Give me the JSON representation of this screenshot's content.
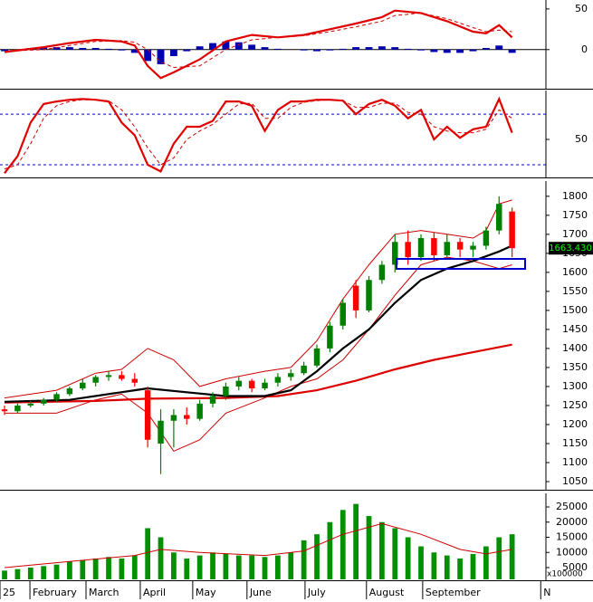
{
  "chart_data": [
    {
      "type": "macd",
      "xlim": [
        -0.35,
        41.6
      ],
      "ylim": [
        -47,
        61
      ],
      "yticks": [
        0,
        50
      ],
      "zero_line": true,
      "series": [
        {
          "style": "bar",
          "color": "#0000b0",
          "x": [
            0,
            1,
            2,
            3,
            4,
            5,
            6,
            7,
            8,
            9,
            10,
            11,
            12,
            13,
            14,
            15,
            16,
            17,
            18,
            19,
            20,
            21,
            22,
            23,
            24,
            25,
            26,
            27,
            28,
            29,
            30,
            31,
            32,
            33,
            34,
            35,
            36,
            37,
            38,
            39
          ],
          "values": [
            -2,
            0,
            2,
            3,
            3,
            3,
            2,
            2,
            1,
            -1,
            -4,
            -14,
            -18,
            -8,
            -2,
            4,
            8,
            10,
            9,
            6,
            3,
            1,
            0,
            -1,
            -2,
            -1,
            1,
            3,
            3,
            4,
            3,
            1,
            -1,
            -3,
            -4,
            -4,
            -2,
            2,
            5,
            -4
          ]
        },
        {
          "style": "dashed",
          "color": "#cc0000",
          "x": [
            0,
            3,
            5,
            7,
            9,
            10,
            11,
            12,
            13,
            15,
            17,
            19,
            21,
            23,
            25,
            27,
            29,
            30,
            32,
            34,
            36,
            37,
            38,
            39
          ],
          "values": [
            -2,
            0,
            5,
            10,
            11,
            9,
            0,
            -15,
            -22,
            -20,
            0,
            12,
            15,
            17,
            22,
            28,
            35,
            42,
            45,
            38,
            27,
            22,
            24,
            22
          ]
        },
        {
          "style": "thick",
          "color": "#e00000",
          "x": [
            0,
            3,
            5,
            7,
            9,
            10,
            11,
            12,
            13,
            15,
            17,
            19,
            21,
            23,
            25,
            27,
            29,
            30,
            32,
            34,
            36,
            37,
            38,
            39
          ],
          "values": [
            -3,
            3,
            8,
            12,
            10,
            5,
            -20,
            -35,
            -28,
            -12,
            10,
            18,
            15,
            18,
            25,
            32,
            40,
            48,
            45,
            35,
            22,
            20,
            30,
            15
          ]
        }
      ]
    },
    {
      "type": "stochastic",
      "xlim": [
        -0.35,
        41.6
      ],
      "ylim": [
        6,
        108
      ],
      "yticks": [
        50
      ],
      "levels": [
        80,
        20
      ],
      "level_color": "#0000cc",
      "series": [
        {
          "style": "dashed",
          "color": "#cc0000",
          "x": [
            0,
            1,
            2,
            3,
            4,
            5,
            6,
            7,
            8,
            9,
            10,
            11,
            12,
            13,
            14,
            15,
            16,
            17,
            18,
            19,
            20,
            21,
            22,
            23,
            24,
            25,
            26,
            27,
            28,
            29,
            30,
            31,
            32,
            33,
            34,
            35,
            36,
            37,
            38,
            39
          ],
          "values": [
            15,
            20,
            45,
            75,
            90,
            95,
            97,
            97,
            96,
            85,
            65,
            40,
            20,
            28,
            50,
            60,
            68,
            80,
            92,
            93,
            75,
            75,
            88,
            94,
            96,
            97,
            96,
            88,
            88,
            93,
            93,
            82,
            80,
            65,
            60,
            58,
            58,
            62,
            85,
            75
          ]
        },
        {
          "style": "thick",
          "color": "#e00000",
          "x": [
            0,
            1,
            2,
            3,
            4,
            5,
            6,
            7,
            8,
            9,
            10,
            11,
            12,
            13,
            14,
            15,
            16,
            17,
            18,
            19,
            20,
            21,
            22,
            23,
            24,
            25,
            26,
            27,
            28,
            29,
            30,
            31,
            32,
            33,
            34,
            35,
            36,
            37,
            38,
            39
          ],
          "values": [
            10,
            30,
            70,
            92,
            95,
            97,
            98,
            97,
            95,
            70,
            55,
            20,
            12,
            45,
            65,
            65,
            72,
            95,
            95,
            90,
            60,
            85,
            95,
            95,
            97,
            97,
            96,
            80,
            92,
            97,
            90,
            75,
            85,
            50,
            65,
            52,
            62,
            65,
            98,
            58
          ]
        }
      ]
    },
    {
      "type": "candlestick",
      "xlim": [
        -0.35,
        41.6
      ],
      "ylim": [
        1031,
        1840
      ],
      "yticks": [
        1050,
        1100,
        1150,
        1200,
        1250,
        1300,
        1350,
        1400,
        1450,
        1500,
        1550,
        1600,
        1650,
        1700,
        1750,
        1800
      ],
      "up_color": "#008000",
      "down_color": "#ff0000",
      "last_price_label": "1663.430",
      "candles": {
        "x": [
          0,
          1,
          2,
          3,
          4,
          5,
          6,
          7,
          8,
          9,
          10,
          11,
          12,
          13,
          14,
          15,
          16,
          17,
          18,
          19,
          20,
          21,
          22,
          23,
          24,
          25,
          26,
          27,
          28,
          29,
          30,
          31,
          32,
          33,
          34,
          35,
          36,
          37,
          38,
          39
        ],
        "open": [
          1240,
          1235,
          1250,
          1255,
          1265,
          1280,
          1295,
          1310,
          1325,
          1330,
          1320,
          1290,
          1150,
          1210,
          1225,
          1215,
          1255,
          1275,
          1300,
          1315,
          1295,
          1310,
          1325,
          1335,
          1355,
          1400,
          1460,
          1565,
          1500,
          1580,
          1620,
          1680,
          1640,
          1690,
          1645,
          1680,
          1660,
          1670,
          1710,
          1760
        ],
        "high": [
          1250,
          1255,
          1262,
          1270,
          1285,
          1300,
          1320,
          1330,
          1340,
          1340,
          1335,
          1300,
          1240,
          1240,
          1245,
          1265,
          1285,
          1310,
          1325,
          1320,
          1320,
          1335,
          1345,
          1365,
          1410,
          1470,
          1530,
          1580,
          1590,
          1630,
          1700,
          1710,
          1700,
          1705,
          1700,
          1690,
          1680,
          1720,
          1800,
          1770
        ],
        "low": [
          1225,
          1230,
          1245,
          1250,
          1260,
          1275,
          1290,
          1300,
          1315,
          1315,
          1300,
          1140,
          1070,
          1140,
          1200,
          1210,
          1245,
          1265,
          1290,
          1285,
          1290,
          1300,
          1315,
          1330,
          1350,
          1390,
          1450,
          1480,
          1495,
          1570,
          1600,
          1620,
          1630,
          1630,
          1640,
          1640,
          1640,
          1660,
          1700,
          1640
        ],
        "close": [
          1235,
          1250,
          1255,
          1265,
          1280,
          1295,
          1310,
          1325,
          1330,
          1320,
          1310,
          1160,
          1210,
          1225,
          1215,
          1255,
          1275,
          1300,
          1315,
          1295,
          1310,
          1325,
          1335,
          1355,
          1400,
          1460,
          1520,
          1500,
          1580,
          1620,
          1680,
          1640,
          1690,
          1645,
          1680,
          1660,
          1670,
          1710,
          1780,
          1663.43
        ]
      },
      "series": [
        {
          "style": "thin",
          "color": "#cc0000",
          "x": [
            0,
            4,
            7,
            9,
            11,
            13,
            15,
            17,
            20,
            22,
            24,
            26,
            28,
            30,
            32,
            34,
            36,
            37,
            38,
            39
          ],
          "values": [
            1270,
            1290,
            1335,
            1345,
            1400,
            1370,
            1300,
            1320,
            1340,
            1350,
            1420,
            1530,
            1620,
            1700,
            1710,
            1700,
            1690,
            1710,
            1780,
            1790
          ]
        },
        {
          "style": "thin",
          "color": "#cc0000",
          "x": [
            0,
            4,
            7,
            9,
            11,
            13,
            15,
            17,
            20,
            22,
            24,
            26,
            28,
            30,
            32,
            34,
            36,
            38,
            39
          ],
          "values": [
            1230,
            1230,
            1265,
            1280,
            1230,
            1130,
            1160,
            1230,
            1270,
            1300,
            1320,
            1370,
            1450,
            1540,
            1620,
            1640,
            1630,
            1610,
            1620
          ]
        },
        {
          "style": "thick",
          "color": "#dd0000",
          "x": [
            0,
            7,
            11,
            17,
            21,
            24,
            27,
            30,
            33,
            36,
            39
          ],
          "values": [
            1258,
            1262,
            1268,
            1270,
            1275,
            1290,
            1315,
            1345,
            1370,
            1390,
            1410
          ]
        },
        {
          "style": "thick",
          "color": "#000000",
          "x": [
            0,
            5,
            10,
            11,
            14,
            17,
            20,
            22,
            24,
            26,
            28,
            30,
            32,
            34,
            36,
            38,
            39
          ],
          "values": [
            1260,
            1265,
            1290,
            1295,
            1285,
            1275,
            1275,
            1290,
            1340,
            1400,
            1450,
            1520,
            1580,
            1610,
            1630,
            1655,
            1670
          ]
        }
      ]
    },
    {
      "type": "volume",
      "xlim": [
        -0.35,
        41.6
      ],
      "ylim": [
        1119,
        29480
      ],
      "yticks": [
        5000,
        10000,
        15000,
        20000,
        25000
      ],
      "unit_label": "x100000",
      "xticks": [
        {
          "value": -0.35,
          "label": "25"
        },
        {
          "value": 1.95,
          "label": "February"
        },
        {
          "value": 6.26,
          "label": "March"
        },
        {
          "value": 10.43,
          "label": "April"
        },
        {
          "value": 14.46,
          "label": "May"
        },
        {
          "value": 18.63,
          "label": "June"
        },
        {
          "value": 23.09,
          "label": "July"
        },
        {
          "value": 27.81,
          "label": "August"
        },
        {
          "value": 32.13,
          "label": "September"
        },
        {
          "value": 41.2,
          "label": "N"
        }
      ],
      "series": [
        {
          "style": "bar",
          "color": "#009000",
          "x": [
            0,
            1,
            2,
            3,
            4,
            5,
            6,
            7,
            8,
            9,
            10,
            11,
            12,
            13,
            14,
            15,
            16,
            17,
            18,
            19,
            20,
            21,
            22,
            23,
            24,
            25,
            26,
            27,
            28,
            29,
            30,
            31,
            32,
            33,
            34,
            35,
            36,
            37,
            38,
            39
          ],
          "values": [
            4000,
            4500,
            5000,
            5500,
            6000,
            7000,
            7500,
            8000,
            8500,
            8000,
            9000,
            18000,
            15000,
            10000,
            8000,
            9000,
            10000,
            9500,
            9000,
            9000,
            8500,
            9000,
            10000,
            14000,
            16000,
            20000,
            24000,
            26000,
            22000,
            20000,
            18000,
            15000,
            12000,
            10000,
            9000,
            8000,
            9500,
            12000,
            15000,
            16000
          ]
        },
        {
          "style": "thin",
          "color": "#cc0000",
          "x": [
            0,
            5,
            10,
            12,
            15,
            20,
            23,
            26,
            29,
            32,
            35,
            37,
            39
          ],
          "values": [
            5000,
            7000,
            9000,
            11000,
            10000,
            9000,
            10500,
            16000,
            19500,
            16000,
            11000,
            9500,
            11000
          ]
        }
      ]
    }
  ]
}
